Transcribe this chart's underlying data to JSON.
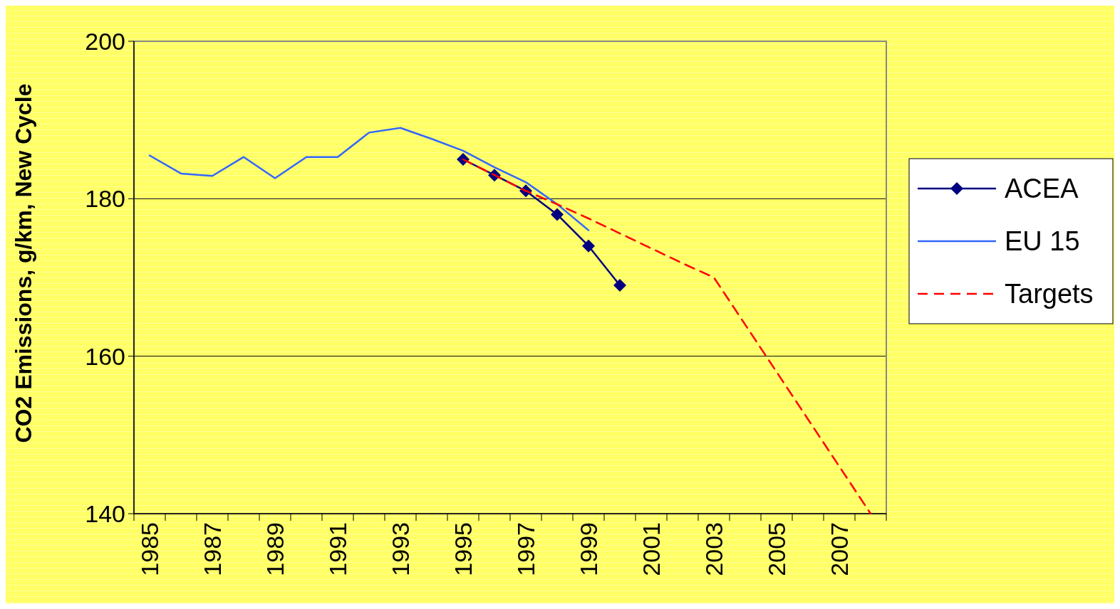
{
  "chart_data": {
    "type": "line",
    "ylabel": "CO2 Emissions, g/km, New Cycle",
    "categories": [
      "1985",
      null,
      "1987",
      null,
      "1989",
      null,
      "1991",
      null,
      "1993",
      null,
      "1995",
      null,
      "1997",
      null,
      "1999",
      null,
      "2001",
      null,
      "2003",
      null,
      "2005",
      null,
      "2007",
      null
    ],
    "series": [
      {
        "name": "ACEA",
        "color": "#000080",
        "marker": "diamond",
        "line_style": "solid",
        "values": [
          null,
          null,
          null,
          null,
          null,
          null,
          null,
          null,
          null,
          null,
          185,
          183,
          181,
          178,
          174,
          169,
          null,
          null,
          null,
          null,
          null,
          null,
          null,
          null
        ]
      },
      {
        "name": "EU 15",
        "color": "#3366ff",
        "marker": "none",
        "line_style": "solid",
        "values": [
          185.5,
          183.2,
          182.9,
          185.3,
          182.6,
          185.3,
          185.3,
          188.4,
          189.0,
          187.6,
          186.1,
          184.0,
          182.1,
          179.3,
          176.0,
          null,
          null,
          null,
          null,
          null,
          null,
          null,
          null,
          null
        ]
      },
      {
        "name": "Targets",
        "color": "#ff0000",
        "marker": "none",
        "line_style": "dashed",
        "values": [
          null,
          null,
          null,
          null,
          null,
          null,
          null,
          null,
          null,
          null,
          185,
          183,
          181,
          179.3,
          177.5,
          175.6,
          173.7,
          171.8,
          170,
          164,
          158,
          152,
          146,
          140
        ]
      }
    ],
    "ylim": [
      140,
      200
    ],
    "yticks": [
      140,
      160,
      180,
      200
    ],
    "grid": "y",
    "legend": "right"
  }
}
